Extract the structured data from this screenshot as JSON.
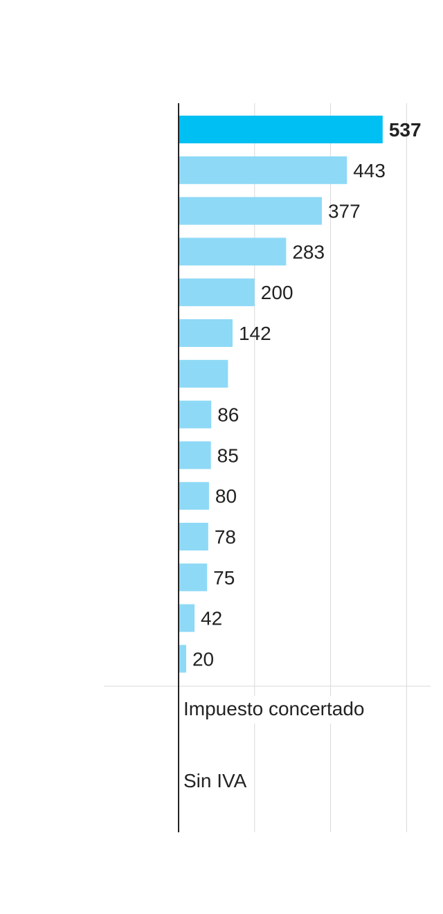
{
  "chart_data": {
    "type": "bar",
    "orientation": "horizontal",
    "values": [
      537,
      443,
      377,
      283,
      200,
      142,
      130,
      86,
      85,
      80,
      78,
      75,
      42,
      20
    ],
    "value_labels": [
      "537",
      "443",
      "377",
      "283",
      "200",
      "142",
      "",
      "86",
      "85",
      "80",
      "78",
      "75",
      "42",
      "20"
    ],
    "highlight_index": 0,
    "colors": {
      "highlight": "#00BFF2",
      "default": "#8ED9F6",
      "axis": "#222222",
      "grid": "#D9D9D9"
    },
    "xlim": [
      0,
      600
    ],
    "gridlines": [
      200,
      400,
      600
    ],
    "grid": true,
    "notes": [
      "Impuesto concertado",
      "Sin IVA"
    ]
  }
}
